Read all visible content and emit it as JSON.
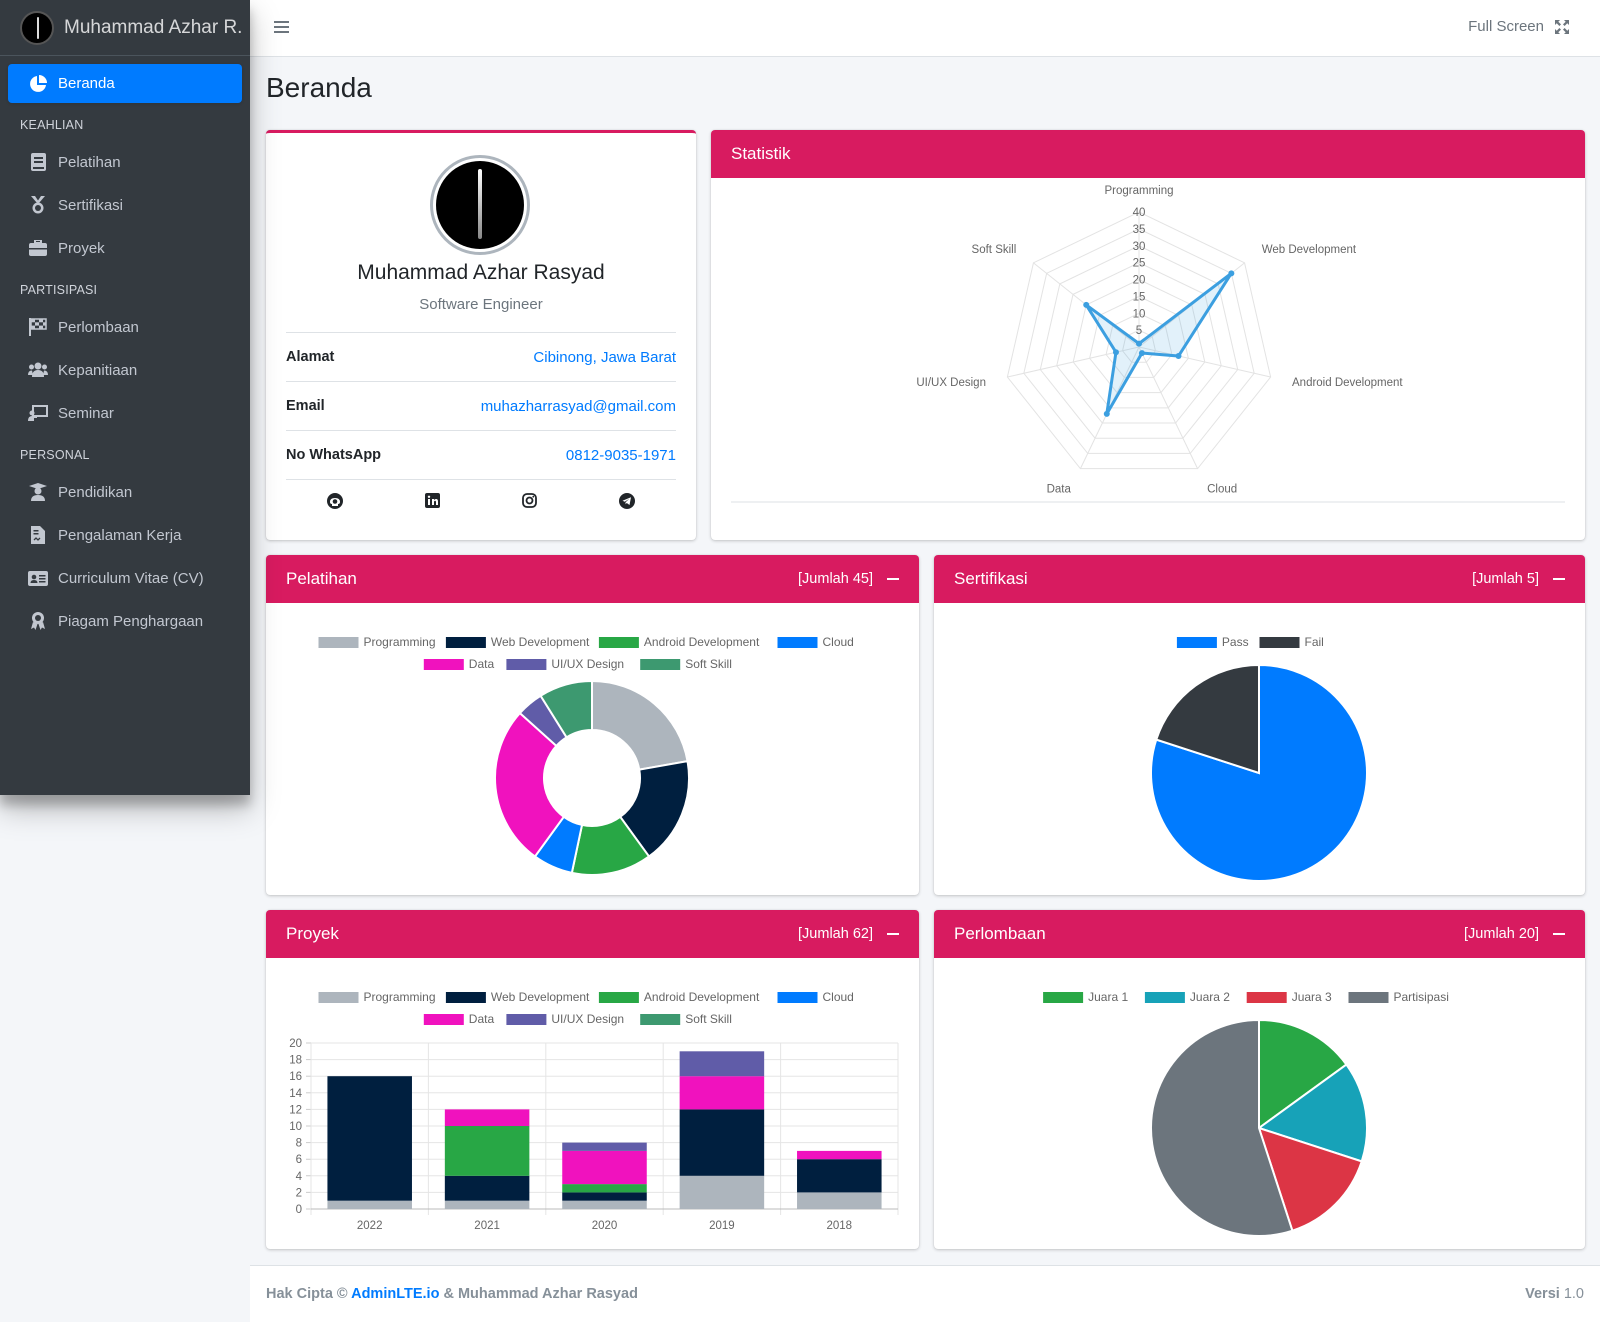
{
  "brand": {
    "name": "Muhammad Azhar R."
  },
  "sidebar": {
    "items": [
      {
        "label": "Beranda",
        "icon": "pie-chart-icon",
        "active": true
      },
      {
        "header": "KEAHLIAN"
      },
      {
        "label": "Pelatihan",
        "icon": "book-icon"
      },
      {
        "label": "Sertifikasi",
        "icon": "medal-icon"
      },
      {
        "label": "Proyek",
        "icon": "briefcase-icon"
      },
      {
        "header": "PARTISIPASI"
      },
      {
        "label": "Perlombaan",
        "icon": "flag-checkered-icon"
      },
      {
        "label": "Kepanitiaan",
        "icon": "users-icon"
      },
      {
        "label": "Seminar",
        "icon": "chalkboard-teacher-icon"
      },
      {
        "header": "PERSONAL"
      },
      {
        "label": "Pendidikan",
        "icon": "graduate-icon"
      },
      {
        "label": "Pengalaman Kerja",
        "icon": "file-contract-icon"
      },
      {
        "label": "Curriculum Vitae (CV)",
        "icon": "id-card-icon"
      },
      {
        "label": "Piagam Penghargaan",
        "icon": "award-icon"
      }
    ]
  },
  "topbar": {
    "fullscreen_label": "Full Screen"
  },
  "page": {
    "title": "Beranda"
  },
  "profile": {
    "name": "Muhammad Azhar Rasyad",
    "role": "Software Engineer",
    "rows": [
      {
        "key": "Alamat",
        "value": "Cibinong, Jawa Barat"
      },
      {
        "key": "Email",
        "value": "muhazharrasyad@gmail.com"
      },
      {
        "key": "No WhatsApp",
        "value": "0812-9035-1971"
      }
    ],
    "social": [
      "github-icon",
      "linkedin-icon",
      "instagram-icon",
      "telegram-icon"
    ]
  },
  "cards": {
    "statistik": {
      "title": "Statistik"
    },
    "pelatihan": {
      "title": "Pelatihan",
      "count": "[Jumlah 45]"
    },
    "sertifikasi": {
      "title": "Sertifikasi",
      "count": "[Jumlah 5]"
    },
    "proyek": {
      "title": "Proyek",
      "count": "[Jumlah 62]"
    },
    "perlombaan": {
      "title": "Perlombaan",
      "count": "[Jumlah 20]"
    }
  },
  "colors": {
    "Programming": "#adb5bd",
    "Web Development": "#001f3f",
    "Android Development": "#28a745",
    "Cloud": "#007bff",
    "Data": "#f012be",
    "UI/UX Design": "#605ca8",
    "Soft Skill": "#3d9970",
    "Pass": "#007bff",
    "Fail": "#343a40",
    "Juara 1": "#28a745",
    "Juara 2": "#17a2b8",
    "Juara 3": "#dc3545",
    "Partisipasi": "#6c757d",
    "accent": "#d81b60"
  },
  "chart_data": [
    {
      "id": "statistik",
      "type": "radar",
      "labels": [
        "Programming",
        "Web Development",
        "Android Development",
        "Cloud",
        "Data",
        "UI/UX Design",
        "Soft Skill"
      ],
      "values": [
        1,
        35,
        12,
        2,
        22,
        7,
        20
      ],
      "ticks": [
        5,
        10,
        15,
        20,
        25,
        30,
        35,
        40
      ],
      "ylim": [
        0,
        40
      ],
      "color": "#3c9fe0"
    },
    {
      "id": "pelatihan",
      "type": "doughnut",
      "labels": [
        "Programming",
        "Web Development",
        "Android Development",
        "Cloud",
        "Data",
        "UI/UX Design",
        "Soft Skill"
      ],
      "values": [
        10,
        8,
        6,
        3,
        12,
        2,
        4
      ]
    },
    {
      "id": "sertifikasi",
      "type": "pie",
      "labels": [
        "Pass",
        "Fail"
      ],
      "values": [
        4,
        1
      ]
    },
    {
      "id": "proyek",
      "type": "bar",
      "stacked": true,
      "categories": [
        "2022",
        "2021",
        "2020",
        "2019",
        "2018"
      ],
      "series": [
        {
          "name": "Programming",
          "values": [
            1,
            1,
            1,
            4,
            2
          ]
        },
        {
          "name": "Web Development",
          "values": [
            15,
            3,
            1,
            8,
            4
          ]
        },
        {
          "name": "Android Development",
          "values": [
            0,
            6,
            1,
            0,
            0
          ]
        },
        {
          "name": "Cloud",
          "values": [
            0,
            0,
            0,
            0,
            0
          ]
        },
        {
          "name": "Data",
          "values": [
            0,
            2,
            4,
            4,
            1
          ]
        },
        {
          "name": "UI/UX Design",
          "values": [
            0,
            0,
            1,
            3,
            0
          ]
        },
        {
          "name": "Soft Skill",
          "values": [
            0,
            0,
            0,
            0,
            0
          ]
        }
      ],
      "yticks": [
        0,
        2,
        4,
        6,
        8,
        10,
        12,
        14,
        16,
        18,
        20
      ],
      "ylim": [
        0,
        20
      ]
    },
    {
      "id": "perlombaan",
      "type": "pie",
      "labels": [
        "Juara 1",
        "Juara 2",
        "Juara 3",
        "Partisipasi"
      ],
      "values": [
        3,
        3,
        3,
        11
      ]
    }
  ],
  "footer": {
    "prefix": "Hak Cipta © ",
    "link": "AdminLTE.io",
    "suffix": " & Muhammad Azhar Rasyad",
    "version_label": "Versi",
    "version": "1.0"
  }
}
